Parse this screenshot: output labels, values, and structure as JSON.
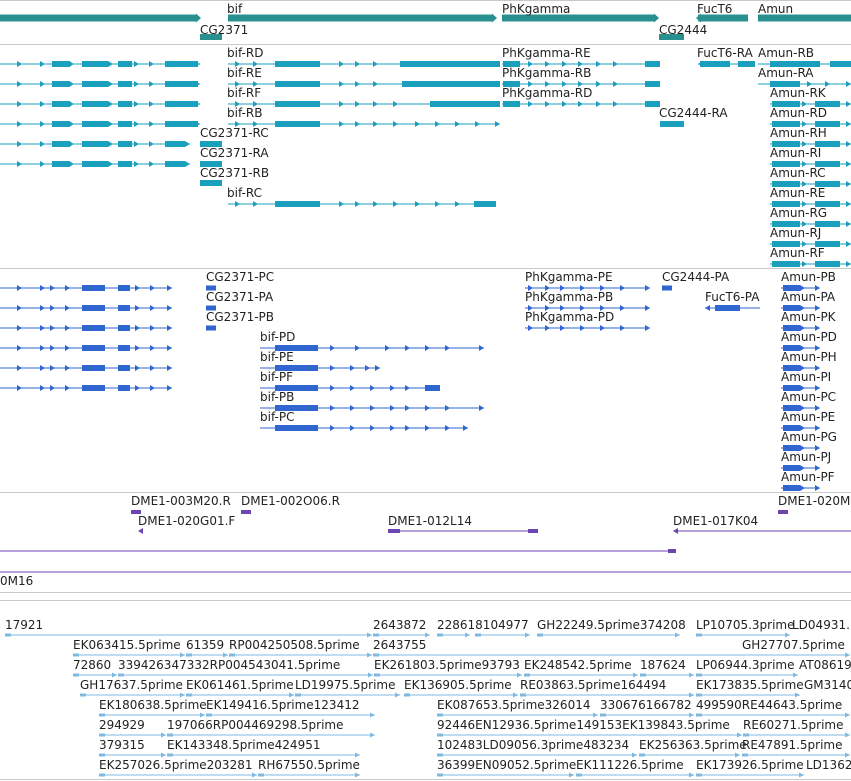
{
  "colors": {
    "gene": "#2a8f8f",
    "transcript": "#1aa0bc",
    "protein": "#2f66cf",
    "clone": "#6c45b0",
    "est": "#7fb8e0",
    "separator": "#c8c8c8"
  },
  "tracks": {
    "genes": {
      "labels": [
        {
          "id": "bif",
          "text": "bif"
        },
        {
          "id": "phkgamma",
          "text": "PhKgamma"
        },
        {
          "id": "fuct6",
          "text": "FucT6"
        },
        {
          "id": "amun",
          "text": "Amun"
        },
        {
          "id": "cg2371",
          "text": "CG2371"
        },
        {
          "id": "cg2444",
          "text": "CG2444"
        }
      ]
    },
    "transcripts": {
      "labels": [
        {
          "id": "bif-rd",
          "text": "bif-RD"
        },
        {
          "id": "bif-re",
          "text": "bif-RE"
        },
        {
          "id": "bif-rf",
          "text": "bif-RF"
        },
        {
          "id": "bif-rb",
          "text": "bif-RB"
        },
        {
          "id": "bif-rc",
          "text": "bif-RC"
        },
        {
          "id": "cg2371-rc",
          "text": "CG2371-RC"
        },
        {
          "id": "cg2371-ra",
          "text": "CG2371-RA"
        },
        {
          "id": "cg2371-rb",
          "text": "CG2371-RB"
        },
        {
          "id": "phkgamma-re",
          "text": "PhKgamma-RE"
        },
        {
          "id": "phkgamma-rb",
          "text": "PhKgamma-RB"
        },
        {
          "id": "phkgamma-rd",
          "text": "PhKgamma-RD"
        },
        {
          "id": "cg2444-ra",
          "text": "CG2444-RA"
        },
        {
          "id": "fuct6-ra",
          "text": "FucT6-RA"
        },
        {
          "id": "amun-rb",
          "text": "Amun-RB"
        },
        {
          "id": "amun-ra",
          "text": "Amun-RA"
        },
        {
          "id": "amun-rk",
          "text": "Amun-RK"
        },
        {
          "id": "amun-rd",
          "text": "Amun-RD"
        },
        {
          "id": "amun-rh",
          "text": "Amun-RH"
        },
        {
          "id": "amun-ri",
          "text": "Amun-RI"
        },
        {
          "id": "amun-rc",
          "text": "Amun-RC"
        },
        {
          "id": "amun-re",
          "text": "Amun-RE"
        },
        {
          "id": "amun-rg",
          "text": "Amun-RG"
        },
        {
          "id": "amun-rj",
          "text": "Amun-RJ"
        },
        {
          "id": "amun-rf",
          "text": "Amun-RF"
        }
      ]
    },
    "proteins": {
      "labels": [
        {
          "id": "cg2371-pc",
          "text": "CG2371-PC"
        },
        {
          "id": "cg2371-pa",
          "text": "CG2371-PA"
        },
        {
          "id": "cg2371-pb",
          "text": "CG2371-PB"
        },
        {
          "id": "bif-pd",
          "text": "bif-PD"
        },
        {
          "id": "bif-pe",
          "text": "bif-PE"
        },
        {
          "id": "bif-pf",
          "text": "bif-PF"
        },
        {
          "id": "bif-pb",
          "text": "bif-PB"
        },
        {
          "id": "bif-pc",
          "text": "bif-PC"
        },
        {
          "id": "phkgamma-pe",
          "text": "PhKgamma-PE"
        },
        {
          "id": "phkgamma-pb",
          "text": "PhKgamma-PB"
        },
        {
          "id": "phkgamma-pd",
          "text": "PhKgamma-PD"
        },
        {
          "id": "cg2444-pa",
          "text": "CG2444-PA"
        },
        {
          "id": "fuct6-pa",
          "text": "FucT6-PA"
        },
        {
          "id": "amun-pb",
          "text": "Amun-PB"
        },
        {
          "id": "amun-pa",
          "text": "Amun-PA"
        },
        {
          "id": "amun-pk",
          "text": "Amun-PK"
        },
        {
          "id": "amun-pd",
          "text": "Amun-PD"
        },
        {
          "id": "amun-ph",
          "text": "Amun-PH"
        },
        {
          "id": "amun-pi",
          "text": "Amun-PI"
        },
        {
          "id": "amun-pc",
          "text": "Amun-PC"
        },
        {
          "id": "amun-pe",
          "text": "Amun-PE"
        },
        {
          "id": "amun-pg",
          "text": "Amun-PG"
        },
        {
          "id": "amun-pj",
          "text": "Amun-PJ"
        },
        {
          "id": "amun-pf",
          "text": "Amun-PF"
        }
      ]
    },
    "clones": {
      "labels": [
        {
          "id": "dme1-003m20",
          "text": "DME1-003M20.R"
        },
        {
          "id": "dme1-002o06",
          "text": "DME1-002O06.R"
        },
        {
          "id": "dme1-020m",
          "text": "DME1-020M"
        },
        {
          "id": "dme1-020g01",
          "text": "DME1-020G01.F"
        },
        {
          "id": "dme1-012l14",
          "text": "DME1-012L14"
        },
        {
          "id": "dme1-017k04",
          "text": "DME1-017K04"
        }
      ]
    },
    "contig": {
      "label": "0M16"
    },
    "ests": {
      "labels": [
        {
          "id": "e1",
          "text": "17921"
        },
        {
          "id": "e2",
          "text": "2643872"
        },
        {
          "id": "e3",
          "text": "228618104977"
        },
        {
          "id": "e4",
          "text": "GH22249.5prime374208"
        },
        {
          "id": "e5",
          "text": "LP10705.3prime"
        },
        {
          "id": "e6",
          "text": "LD04931."
        },
        {
          "id": "e7",
          "text": "EK063415.5prime"
        },
        {
          "id": "e8",
          "text": "61359"
        },
        {
          "id": "e9",
          "text": "RP004250508.5prime"
        },
        {
          "id": "e10",
          "text": "2643755"
        },
        {
          "id": "e11",
          "text": "GH27707.5prime"
        },
        {
          "id": "e12",
          "text": "72860"
        },
        {
          "id": "e13",
          "text": "339426347332RP004543041.5prime"
        },
        {
          "id": "e14",
          "text": "EK261803.5prime93793"
        },
        {
          "id": "e15",
          "text": "EK248542.5prime"
        },
        {
          "id": "e16",
          "text": "187624"
        },
        {
          "id": "e17",
          "text": "LP06944.3prime"
        },
        {
          "id": "e18",
          "text": "AT08619"
        },
        {
          "id": "e19",
          "text": "GH17637.5prime"
        },
        {
          "id": "e20",
          "text": "EK061461.5prime"
        },
        {
          "id": "e21",
          "text": "LD19975.5prime"
        },
        {
          "id": "e22",
          "text": "EK136905.5prime"
        },
        {
          "id": "e23",
          "text": "RE03863.5prime164494"
        },
        {
          "id": "e24",
          "text": "EK173835.5prime"
        },
        {
          "id": "e25",
          "text": "GM3140"
        },
        {
          "id": "e26",
          "text": "EK180638.5prime"
        },
        {
          "id": "e27",
          "text": "EK149416.5prime123412"
        },
        {
          "id": "e28",
          "text": "EK087653.5prime326014"
        },
        {
          "id": "e29",
          "text": "330676166782"
        },
        {
          "id": "e30",
          "text": "499590RE44643.5prime"
        },
        {
          "id": "e31",
          "text": "294929"
        },
        {
          "id": "e32",
          "text": "197066RP004469298.5prime"
        },
        {
          "id": "e33",
          "text": "92446EN12936.5prime149153EK139843.5prime"
        },
        {
          "id": "e34",
          "text": "RE60271.5prime"
        },
        {
          "id": "e35",
          "text": "379315"
        },
        {
          "id": "e36",
          "text": "EK143348.5prime424951"
        },
        {
          "id": "e37",
          "text": "102483LD09056.3prime483234"
        },
        {
          "id": "e38",
          "text": "EK256363.5prime"
        },
        {
          "id": "e39",
          "text": "RE47891.5prime"
        },
        {
          "id": "e40",
          "text": "EK257026.5prime203281"
        },
        {
          "id": "e41",
          "text": "RH67550.5prime"
        },
        {
          "id": "e42",
          "text": "36399EN09052.5prime"
        },
        {
          "id": "e43",
          "text": "EK111226.5prime"
        },
        {
          "id": "e44",
          "text": "EK173926.5prime"
        },
        {
          "id": "e45",
          "text": "LD1362"
        }
      ]
    }
  }
}
